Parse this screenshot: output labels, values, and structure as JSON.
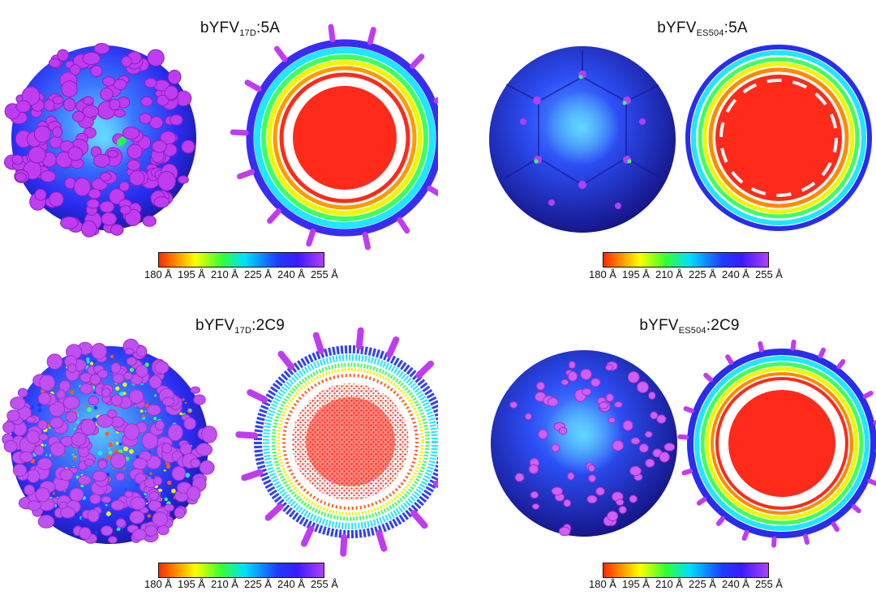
{
  "panels": [
    {
      "title_main": "bYFV",
      "title_sub": "17D",
      "title_suffix": ":5A"
    },
    {
      "title_main": "bYFV",
      "title_sub": "ES504",
      "title_suffix": ":5A"
    },
    {
      "title_main": "bYFV",
      "title_sub": "17D",
      "title_suffix": ":2C9"
    },
    {
      "title_main": "bYFV",
      "title_sub": "ES504",
      "title_suffix": ":2C9"
    }
  ],
  "colorbar": {
    "ticks": [
      "180 Å",
      "195 Å",
      "210 Å",
      "225 Å",
      "240 Å",
      "255 Å"
    ],
    "range_angstrom": [
      180,
      255
    ]
  },
  "colors": {
    "surface_blue": "#2a2cf0",
    "spike_magenta": "#c03cf0",
    "core_red": "#ff2a1a",
    "ring_yellow": "#f2f500",
    "ring_cyan": "#20e6ff"
  }
}
